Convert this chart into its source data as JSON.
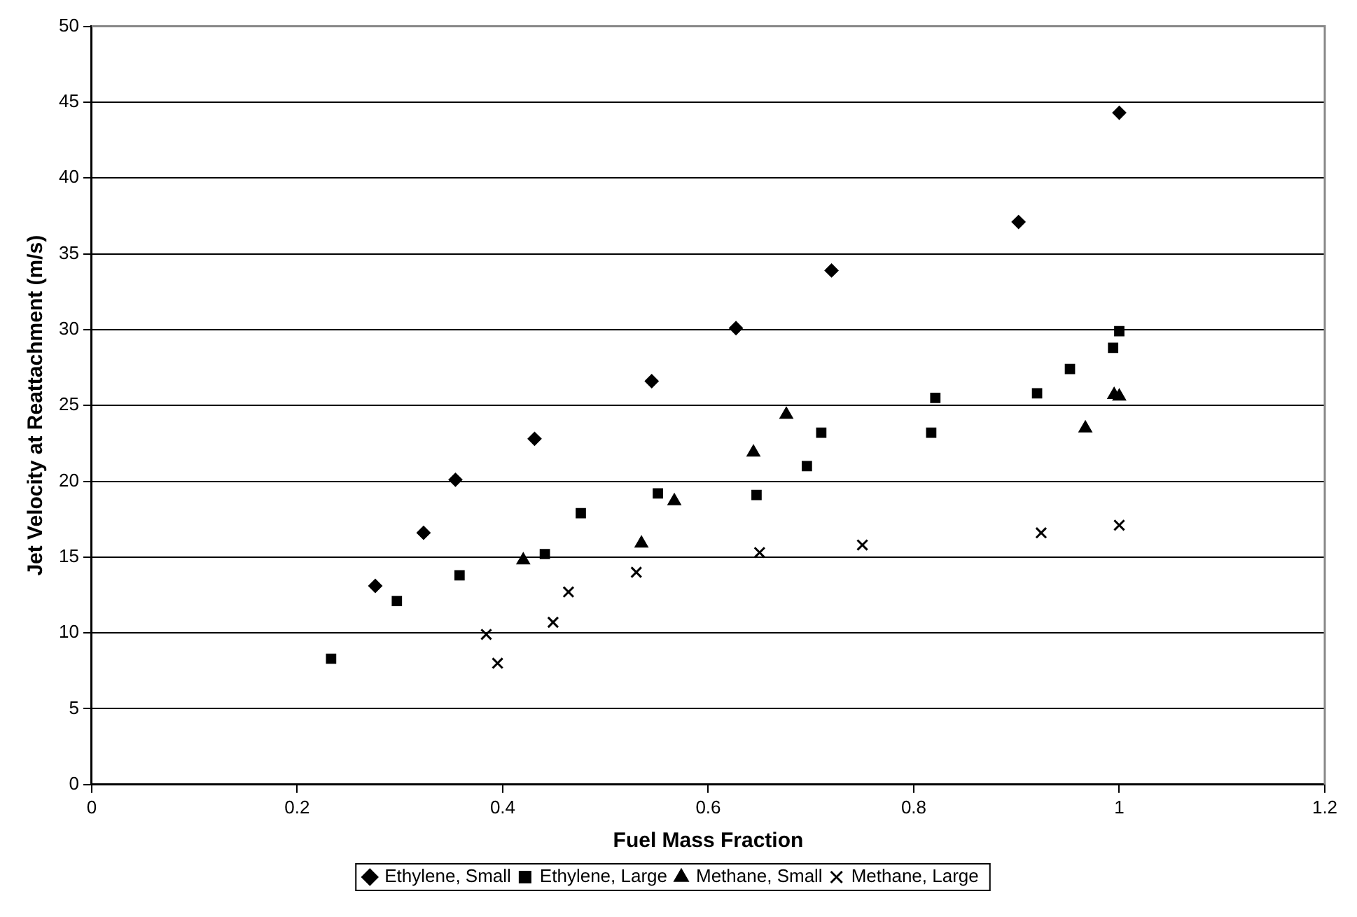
{
  "chart_data": {
    "type": "scatter",
    "xlabel": "Fuel Mass Fraction",
    "ylabel": "Jet Velocity at Reattachment (m/s)",
    "xlim": [
      0,
      1.2
    ],
    "xticks": [
      0,
      0.2,
      0.4,
      0.6,
      0.8,
      1,
      1.2
    ],
    "ylim": [
      0,
      50
    ],
    "yticks": [
      0,
      5,
      10,
      15,
      20,
      25,
      30,
      35,
      40,
      45,
      50
    ],
    "grid": "y",
    "legend": "bottom",
    "series": [
      {
        "name": "Ethylene, Small",
        "color": "#000000",
        "marker": "diamond",
        "x": [
          0.276,
          0.323,
          0.354,
          0.431,
          0.545,
          0.627,
          0.72,
          0.902,
          1.0
        ],
        "values": [
          13.1,
          16.6,
          20.1,
          22.8,
          26.6,
          30.1,
          33.9,
          37.1,
          44.3
        ]
      },
      {
        "name": "Ethylene, Large",
        "color": "#000000",
        "marker": "square",
        "x": [
          0.233,
          0.297,
          0.358,
          0.441,
          0.476,
          0.551,
          0.647,
          0.696,
          0.71,
          0.817,
          0.821,
          0.92,
          0.952,
          0.994,
          1.0
        ],
        "values": [
          8.3,
          12.1,
          13.8,
          15.2,
          17.9,
          19.2,
          19.1,
          21.0,
          23.2,
          23.2,
          25.5,
          25.8,
          27.4,
          28.8,
          29.9
        ]
      },
      {
        "name": "Methane, Small",
        "color": "#000000",
        "marker": "triangle",
        "x": [
          0.42,
          0.535,
          0.567,
          0.644,
          0.676,
          0.967,
          0.995,
          1.0
        ],
        "values": [
          14.8,
          15.9,
          18.7,
          21.9,
          24.4,
          23.5,
          25.7,
          25.6
        ]
      },
      {
        "name": "Methane, Large",
        "color": "#000000",
        "marker": "cross",
        "x": [
          0.384,
          0.395,
          0.449,
          0.464,
          0.53,
          0.65,
          0.75,
          0.924,
          1.0
        ],
        "values": [
          9.9,
          8.0,
          10.7,
          12.7,
          14.0,
          15.3,
          15.8,
          16.6,
          17.1
        ]
      }
    ]
  }
}
